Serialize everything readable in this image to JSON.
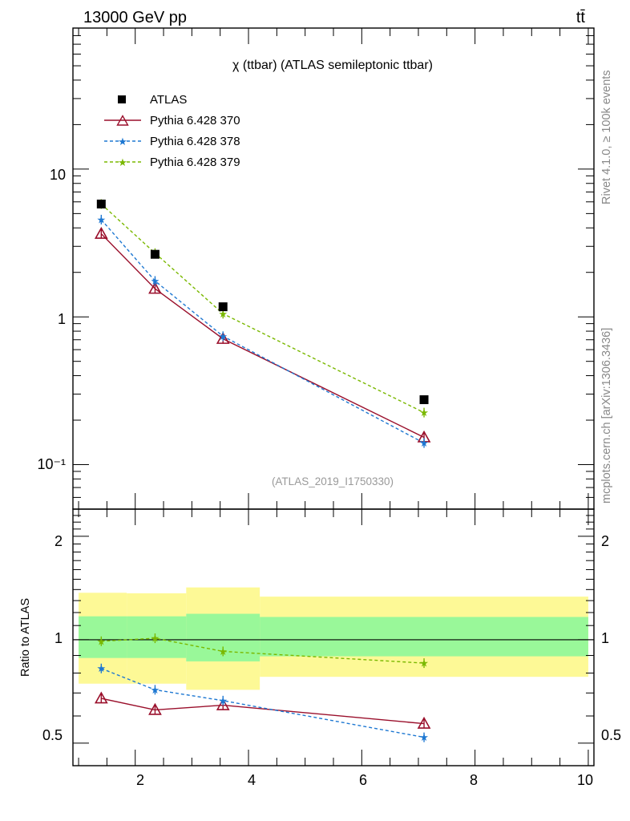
{
  "header": {
    "energy_label": "13000 GeV pp",
    "process_label": "tt̄"
  },
  "side_labels": {
    "rivet": "Rivet 4.1.0, ≥ 100k events",
    "mcplots": "mcplots.cern.ch [arXiv:1306.3436]"
  },
  "colors": {
    "atlas": "#000000",
    "pythia_370": "#9a0f2b",
    "pythia_378": "#1e78d2",
    "pythia_379": "#7ab800",
    "band_inner": "#99f899",
    "band_outer": "#fdf996"
  },
  "chart_data": [
    {
      "type": "line",
      "title": "χ (ttbar) (ATLAS semileptonic ttbar)",
      "analysis_label": "(ATLAS_2019_I1750330)",
      "xlabel": "",
      "ylabel": "",
      "xlim": [
        0.9,
        10.1
      ],
      "ylim": [
        0.05,
        90
      ],
      "yscale": "log",
      "y_tick_labels": [
        "10⁻¹",
        "1",
        "10"
      ],
      "y_tick_values": [
        0.1,
        1,
        10
      ],
      "legend": [
        "ATLAS",
        "Pythia 6.428 370",
        "Pythia 6.428 378",
        "Pythia 6.428 379"
      ],
      "legend_position": "top-left",
      "series": [
        {
          "name": "ATLAS",
          "x": [
            1.4,
            2.35,
            3.55,
            7.1
          ],
          "values": [
            5.8,
            2.65,
            1.17,
            0.275
          ]
        },
        {
          "name": "Pythia 6.428 370",
          "x": [
            1.4,
            2.35,
            3.55,
            7.1
          ],
          "values": [
            3.65,
            1.55,
            0.71,
            0.153
          ]
        },
        {
          "name": "Pythia 6.428 378",
          "x": [
            1.4,
            2.35,
            3.55,
            7.1
          ],
          "values": [
            4.55,
            1.75,
            0.74,
            0.14
          ]
        },
        {
          "name": "Pythia 6.428 379",
          "x": [
            1.4,
            2.35,
            3.55,
            7.1
          ],
          "values": [
            5.8,
            2.7,
            1.05,
            0.225
          ]
        }
      ]
    },
    {
      "type": "line",
      "ylabel": "Ratio to ATLAS",
      "xlabel": "",
      "xlim": [
        0.9,
        10.1
      ],
      "ylim": [
        0.43,
        2.4
      ],
      "yscale": "log",
      "x_tick_labels": [
        "2",
        "4",
        "6",
        "8",
        "10"
      ],
      "x_tick_values": [
        2,
        4,
        6,
        8,
        10
      ],
      "y_tick_labels": [
        "0.5",
        "1",
        "2"
      ],
      "y_tick_values": [
        0.5,
        1,
        2
      ],
      "bands": [
        {
          "x0": 1.0,
          "x1": 1.85,
          "inner": [
            0.885,
            1.17
          ],
          "outer": [
            0.745,
            1.37
          ]
        },
        {
          "x0": 1.85,
          "x1": 2.9,
          "inner": [
            0.885,
            1.17
          ],
          "outer": [
            0.745,
            1.365
          ]
        },
        {
          "x0": 2.9,
          "x1": 4.2,
          "inner": [
            0.865,
            1.19
          ],
          "outer": [
            0.715,
            1.42
          ]
        },
        {
          "x0": 4.2,
          "x1": 10.0,
          "inner": [
            0.895,
            1.165
          ],
          "outer": [
            0.78,
            1.335
          ]
        }
      ],
      "series": [
        {
          "name": "Pythia 6.428 370",
          "x": [
            1.4,
            2.35,
            3.55,
            7.1
          ],
          "values": [
            0.675,
            0.625,
            0.645,
            0.57
          ]
        },
        {
          "name": "Pythia 6.428 378",
          "x": [
            1.4,
            2.35,
            3.55,
            7.1
          ],
          "values": [
            0.825,
            0.715,
            0.665,
            0.52
          ]
        },
        {
          "name": "Pythia 6.428 379",
          "x": [
            1.4,
            2.35,
            3.55,
            7.1
          ],
          "values": [
            0.99,
            1.01,
            0.925,
            0.855
          ]
        }
      ]
    }
  ]
}
